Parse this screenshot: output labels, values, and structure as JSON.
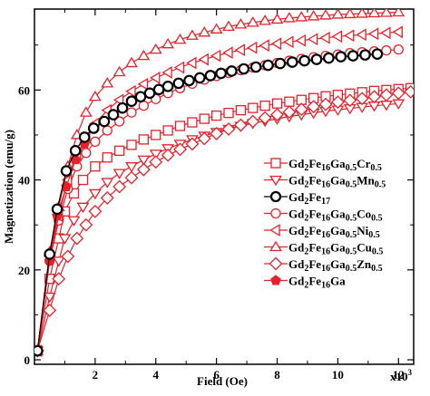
{
  "chart_data": {
    "type": "scatter",
    "xlabel": "Field (Oe)",
    "ylabel": "Magnetization (emu/g)",
    "x_multiplier_label": "x10",
    "x_multiplier_exp": "3",
    "xlim": [
      0,
      12.5
    ],
    "ylim": [
      -1,
      78
    ],
    "x_ticks": [
      2,
      4,
      6,
      8,
      10,
      12
    ],
    "y_ticks": [
      0,
      20,
      40,
      60
    ],
    "legend_position": "right-middle",
    "line_color": "#e8202a",
    "series": [
      {
        "id": "cr",
        "name": "Gd2Fe16Ga0.5Cr0.5",
        "legend": {
          "b1": "Gd",
          "s1": "2",
          "b2": "Fe",
          "s2": "16",
          "b3": "Ga",
          "s3": "0.5",
          "b4": "Cr",
          "s4": "0.5"
        },
        "marker": "square",
        "x": [
          0.1,
          0.5,
          0.8,
          1.0,
          1.3,
          1.6,
          2.0,
          2.4,
          2.8,
          3.2,
          3.6,
          4.0,
          4.4,
          4.8,
          5.2,
          5.6,
          6.0,
          6.4,
          6.8,
          7.2,
          7.6,
          8.0,
          8.4,
          8.8,
          9.2,
          9.6,
          10.0,
          10.4,
          10.8,
          11.2,
          11.6,
          12.0,
          12.4
        ],
        "y": [
          2,
          18,
          27,
          33,
          37,
          40,
          43,
          45,
          46.5,
          47.8,
          49,
          50,
          51,
          52,
          52.8,
          53.6,
          54.3,
          54.9,
          55.5,
          56,
          56.5,
          57,
          57.4,
          57.8,
          58.2,
          58.6,
          58.9,
          59.2,
          59.5,
          59.8,
          60,
          60.2,
          60.4
        ]
      },
      {
        "id": "mn",
        "name": "Gd2Fe16Ga0.5Mn0.5",
        "legend": {
          "b1": "Gd",
          "s1": "2",
          "b2": "Fe",
          "s2": "16",
          "b3": "Ga",
          "s3": "0.5",
          "b4": "Mn",
          "s4": "0.5"
        },
        "marker": "triangle-down",
        "x": [
          0.1,
          0.5,
          0.8,
          1.0,
          1.3,
          1.6,
          2.0,
          2.4,
          2.8,
          3.2,
          3.6,
          4.0,
          4.4,
          4.8,
          5.2,
          5.6,
          6.0,
          6.4,
          6.8,
          7.2,
          7.6,
          8.0,
          8.4,
          8.8,
          9.2,
          9.6,
          10.0,
          10.4,
          10.8,
          11.2,
          11.6,
          12.0
        ],
        "y": [
          2,
          14,
          22,
          27,
          31,
          34,
          37,
          39.5,
          41.5,
          43,
          44.5,
          45.8,
          47,
          48,
          49,
          49.8,
          50.6,
          51.3,
          52,
          52.6,
          53.1,
          53.6,
          54.1,
          54.5,
          54.9,
          55.3,
          55.6,
          55.9,
          56.2,
          56.5,
          56.7,
          57
        ]
      },
      {
        "id": "gd2fe17",
        "name": "Gd2Fe17",
        "legend": {
          "b1": "Gd",
          "s1": "2",
          "b2": "Fe",
          "s2": "17"
        },
        "marker": "circle-black",
        "x": [
          0.1,
          0.5,
          0.75,
          1.05,
          1.35,
          1.65,
          1.95,
          2.3,
          2.6,
          2.9,
          3.2,
          3.5,
          3.8,
          4.1,
          4.4,
          4.75,
          5.1,
          5.45,
          5.8,
          6.15,
          6.5,
          6.9,
          7.3,
          7.7,
          8.1,
          8.5,
          8.9,
          9.3,
          9.7,
          10.1,
          10.5,
          10.9,
          11.3
        ],
        "y": [
          2,
          23.5,
          33.5,
          42,
          46.5,
          49.5,
          51.5,
          53,
          54.5,
          56,
          57.5,
          58.5,
          59.3,
          60.1,
          60.8,
          61.5,
          62.1,
          62.7,
          63.2,
          63.7,
          64.2,
          64.7,
          65.1,
          65.5,
          65.9,
          66.2,
          66.5,
          66.8,
          67.1,
          67.4,
          67.6,
          67.8,
          68
        ]
      },
      {
        "id": "co",
        "name": "Gd2Fe16Ga0.5Co0.5",
        "legend": {
          "b1": "Gd",
          "s1": "2",
          "b2": "Fe",
          "s2": "16",
          "b3": "Ga",
          "s3": "0.5",
          "b4": "Co",
          "s4": "0.5"
        },
        "marker": "circle",
        "x": [
          0.1,
          0.5,
          0.8,
          1.1,
          1.4,
          1.7,
          2.0,
          2.4,
          2.8,
          3.2,
          3.6,
          4.0,
          4.4,
          4.8,
          5.2,
          5.6,
          6.0,
          6.4,
          6.8,
          7.2,
          7.6,
          8.0,
          8.4,
          8.8,
          9.2,
          9.6,
          10.0,
          10.4,
          10.8,
          11.2,
          11.6,
          12.0
        ],
        "y": [
          2,
          22,
          31,
          38,
          43,
          46,
          48.5,
          51,
          53,
          55,
          56.5,
          58,
          59.3,
          60.4,
          61.4,
          62.3,
          63.1,
          63.8,
          64.4,
          65,
          65.5,
          66,
          66.5,
          66.9,
          67.3,
          67.6,
          67.9,
          68.2,
          68.4,
          68.6,
          68.8,
          69
        ]
      },
      {
        "id": "ni",
        "name": "Gd2Fe16Ga0.5Ni0.5",
        "legend": {
          "b1": "Gd",
          "s1": "2",
          "b2": "Fe",
          "s2": "16",
          "b3": "Ga",
          "s3": "0.5",
          "b4": "Ni",
          "s4": "0.5"
        },
        "marker": "triangle-left",
        "x": [
          0.1,
          0.5,
          0.8,
          1.1,
          1.4,
          1.7,
          2.0,
          2.4,
          2.8,
          3.2,
          3.6,
          4.0,
          4.4,
          4.8,
          5.2,
          5.6,
          6.0,
          6.4,
          6.8,
          7.2,
          7.6,
          8.0,
          8.4,
          8.8,
          9.2,
          9.6,
          10.0,
          10.4,
          10.8,
          11.2,
          11.6,
          12.0
        ],
        "y": [
          2,
          23,
          32,
          40,
          45.5,
          49.5,
          52.5,
          55.5,
          57.8,
          59.7,
          61.3,
          62.7,
          63.9,
          65,
          66,
          66.8,
          67.6,
          68.3,
          68.9,
          69.4,
          69.9,
          70.3,
          70.7,
          71,
          71.3,
          71.6,
          71.9,
          72.1,
          72.3,
          72.5,
          72.7,
          72.9
        ]
      },
      {
        "id": "cu",
        "name": "Gd2Fe16Ga0.5Cu0.5",
        "legend": {
          "b1": "Gd",
          "s1": "2",
          "b2": "Fe",
          "s2": "16",
          "b3": "Ga",
          "s3": "0.5",
          "b4": "Cu",
          "s4": "0.5"
        },
        "marker": "triangle-up",
        "x": [
          0.1,
          0.5,
          0.8,
          1.1,
          1.4,
          1.7,
          2.0,
          2.4,
          2.8,
          3.2,
          3.6,
          4.0,
          4.4,
          4.8,
          5.2,
          5.6,
          6.0,
          6.4,
          6.8,
          7.2,
          7.6,
          8.0,
          8.4,
          8.8,
          9.2,
          9.6,
          10.0,
          10.4,
          10.8,
          11.2,
          11.6,
          12.0
        ],
        "y": [
          2,
          24,
          34,
          43,
          50,
          55,
          58.5,
          61.5,
          64,
          66,
          67.6,
          69,
          70.2,
          71.2,
          72.1,
          72.8,
          73.5,
          74.1,
          74.6,
          75,
          75.4,
          75.7,
          76,
          76.2,
          76.4,
          76.6,
          76.8,
          76.9,
          77,
          77.1,
          77.2,
          77.3
        ]
      },
      {
        "id": "zn",
        "name": "Gd2Fe16Ga0.5Zn0.5",
        "legend": {
          "b1": "Gd",
          "s1": "2",
          "b2": "Fe",
          "s2": "16",
          "b3": "Ga",
          "s3": "0.5",
          "b4": "Zn",
          "s4": "0.5"
        },
        "marker": "diamond",
        "x": [
          0.1,
          0.5,
          0.8,
          1.1,
          1.4,
          1.7,
          2.0,
          2.4,
          2.8,
          3.2,
          3.6,
          4.0,
          4.4,
          4.8,
          5.2,
          5.6,
          6.0,
          6.4,
          6.8,
          7.2,
          7.6,
          8.0,
          8.4,
          8.8,
          9.2,
          9.6,
          10.0,
          10.4,
          10.8,
          11.2,
          11.6,
          12.0,
          12.4
        ],
        "y": [
          2,
          11,
          18,
          23,
          27,
          30,
          33,
          36,
          38.5,
          40.5,
          42.3,
          44,
          45.5,
          46.8,
          48,
          49.2,
          50.3,
          51.3,
          52.2,
          53,
          53.8,
          54.5,
          55.1,
          55.7,
          56.3,
          56.8,
          57.3,
          57.7,
          58.1,
          58.5,
          58.9,
          59.3,
          59.6
        ]
      },
      {
        "id": "ga",
        "name": "Gd2Fe16Ga",
        "legend": {
          "b1": "Gd",
          "s1": "2",
          "b2": "Fe",
          "s2": "16",
          "b3": "Ga"
        },
        "marker": "pentagon-filled",
        "x": [
          0.1,
          0.5,
          0.75,
          1.05,
          1.35,
          1.65
        ],
        "y": [
          2,
          22,
          32,
          38.5,
          44.5,
          48
        ]
      }
    ]
  }
}
